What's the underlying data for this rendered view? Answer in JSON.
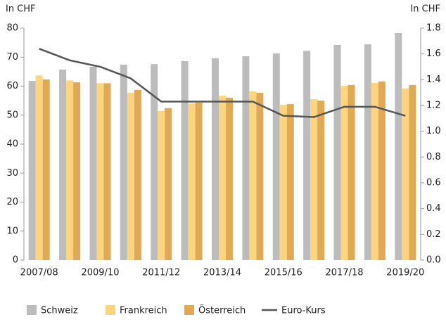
{
  "chart_data": {
    "type": "bar",
    "y_label": "In CHF",
    "y2_label": "In CHF",
    "categories": [
      "2007/08",
      null,
      "2009/10",
      null,
      "2011/12",
      null,
      "2013/14",
      null,
      "2015/16",
      null,
      "2017/18",
      null,
      "2019/20"
    ],
    "series": [
      {
        "name": "Schweiz",
        "color": "#bdbcbc",
        "values": [
          61.8,
          65.7,
          66.7,
          67.4,
          67.6,
          68.6,
          69.6,
          70.3,
          71.3,
          72.2,
          74.2,
          74.4,
          78.3
        ]
      },
      {
        "name": "Frankreich",
        "color": "#fdd57e",
        "values": [
          63.7,
          62,
          61,
          57.7,
          51.4,
          54,
          56.7,
          58.2,
          53.6,
          55.5,
          60.1,
          61.1,
          59.2
        ]
      },
      {
        "name": "Österreich",
        "color": "#e0a955",
        "values": [
          62.3,
          61.3,
          61,
          58.7,
          52.4,
          54.3,
          56,
          57.7,
          53.8,
          55,
          60.4,
          61.6,
          60.4
        ]
      },
      {
        "name": "Euro-Kurs",
        "type": "line",
        "axis": "y2",
        "color": "#555555",
        "values": [
          1.64,
          1.55,
          1.5,
          1.41,
          1.23,
          1.23,
          1.23,
          1.23,
          1.12,
          1.11,
          1.19,
          1.19,
          1.12
        ]
      }
    ],
    "ylim": [
      0,
      80
    ],
    "yticks": [
      0,
      10,
      20,
      30,
      40,
      50,
      60,
      70,
      80
    ],
    "y2lim": [
      0,
      1.8
    ],
    "y2ticks": [
      {
        "value": 0,
        "label": "0.0"
      },
      0.2,
      0.4,
      0.6,
      0.8,
      {
        "value": 1,
        "label": "1.0"
      },
      1.2,
      1.4,
      1.6,
      1.8
    ],
    "legend": "bottom"
  }
}
